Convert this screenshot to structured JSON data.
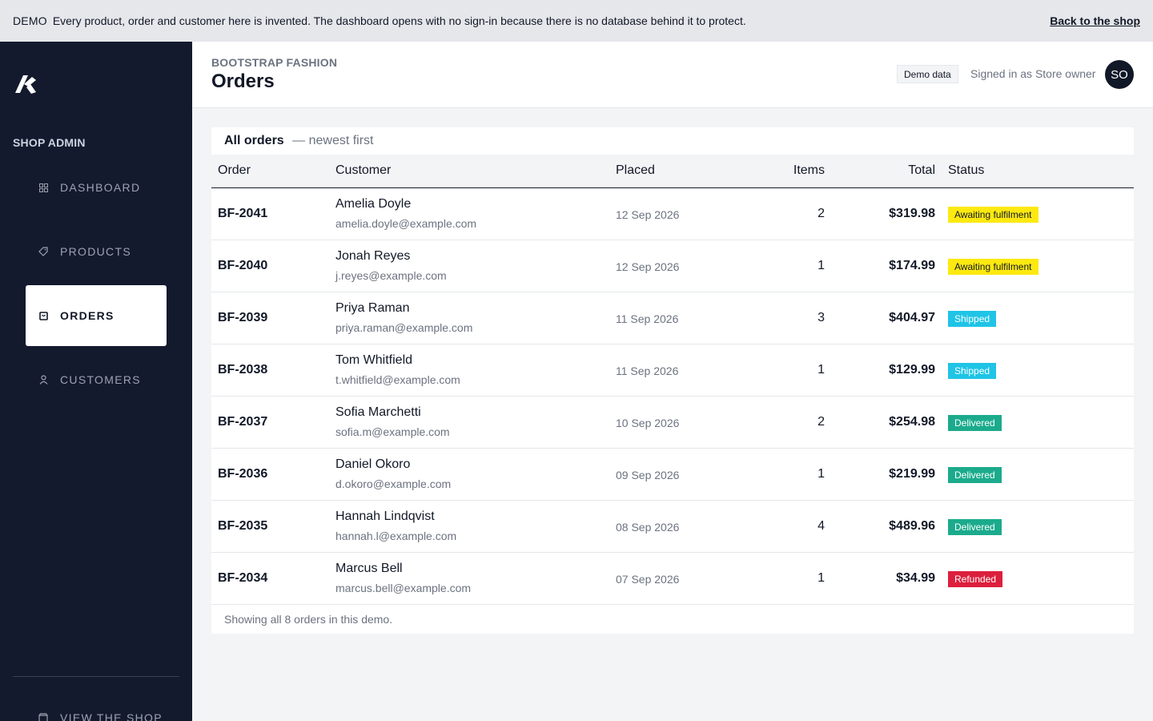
{
  "banner": {
    "tag": "DEMO",
    "message": "Every product, order and customer here is invented. The dashboard opens with no sign-in because there is no database behind it to protect.",
    "back_link": "Back to the shop"
  },
  "sidebar": {
    "section_label": "SHOP ADMIN",
    "items": [
      {
        "label": "DASHBOARD",
        "icon": "grid-icon"
      },
      {
        "label": "PRODUCTS",
        "icon": "tag-icon"
      },
      {
        "label": "ORDERS",
        "icon": "shopping-bag-icon",
        "active": true
      },
      {
        "label": "CUSTOMERS",
        "icon": "user-icon"
      }
    ],
    "view_shop": "VIEW THE SHOP"
  },
  "header": {
    "store_name": "BOOTSTRAP FASHION",
    "title": "Orders",
    "demo_badge": "Demo data",
    "signed_in": "Signed in as Store owner",
    "avatar_initials": "SO"
  },
  "orders": {
    "heading": "All orders",
    "subheading": "— newest first",
    "columns": {
      "order": "Order",
      "customer": "Customer",
      "placed": "Placed",
      "items": "Items",
      "total": "Total",
      "status": "Status"
    },
    "rows": [
      {
        "id": "BF-2041",
        "name": "Amelia Doyle",
        "email": "amelia.doyle@example.com",
        "placed": "12 Sep 2026",
        "items": "2",
        "total": "$319.98",
        "status": "Awaiting fulfilment",
        "status_kind": "awaiting"
      },
      {
        "id": "BF-2040",
        "name": "Jonah Reyes",
        "email": "j.reyes@example.com",
        "placed": "12 Sep 2026",
        "items": "1",
        "total": "$174.99",
        "status": "Awaiting fulfilment",
        "status_kind": "awaiting"
      },
      {
        "id": "BF-2039",
        "name": "Priya Raman",
        "email": "priya.raman@example.com",
        "placed": "11 Sep 2026",
        "items": "3",
        "total": "$404.97",
        "status": "Shipped",
        "status_kind": "shipped"
      },
      {
        "id": "BF-2038",
        "name": "Tom Whitfield",
        "email": "t.whitfield@example.com",
        "placed": "11 Sep 2026",
        "items": "1",
        "total": "$129.99",
        "status": "Shipped",
        "status_kind": "shipped"
      },
      {
        "id": "BF-2037",
        "name": "Sofia Marchetti",
        "email": "sofia.m@example.com",
        "placed": "10 Sep 2026",
        "items": "2",
        "total": "$254.98",
        "status": "Delivered",
        "status_kind": "delivered"
      },
      {
        "id": "BF-2036",
        "name": "Daniel Okoro",
        "email": "d.okoro@example.com",
        "placed": "09 Sep 2026",
        "items": "1",
        "total": "$219.99",
        "status": "Delivered",
        "status_kind": "delivered"
      },
      {
        "id": "BF-2035",
        "name": "Hannah Lindqvist",
        "email": "hannah.l@example.com",
        "placed": "08 Sep 2026",
        "items": "4",
        "total": "$489.96",
        "status": "Delivered",
        "status_kind": "delivered"
      },
      {
        "id": "BF-2034",
        "name": "Marcus Bell",
        "email": "marcus.bell@example.com",
        "placed": "07 Sep 2026",
        "items": "1",
        "total": "$34.99",
        "status": "Refunded",
        "status_kind": "refunded"
      }
    ],
    "footer": "Showing all 8 orders in this demo."
  },
  "colors": {
    "sidebar_bg": "#141a2e",
    "awaiting": "#fde910",
    "shipped": "#1fc4e6",
    "delivered": "#1bab8c",
    "refunded": "#dc1f3c"
  }
}
